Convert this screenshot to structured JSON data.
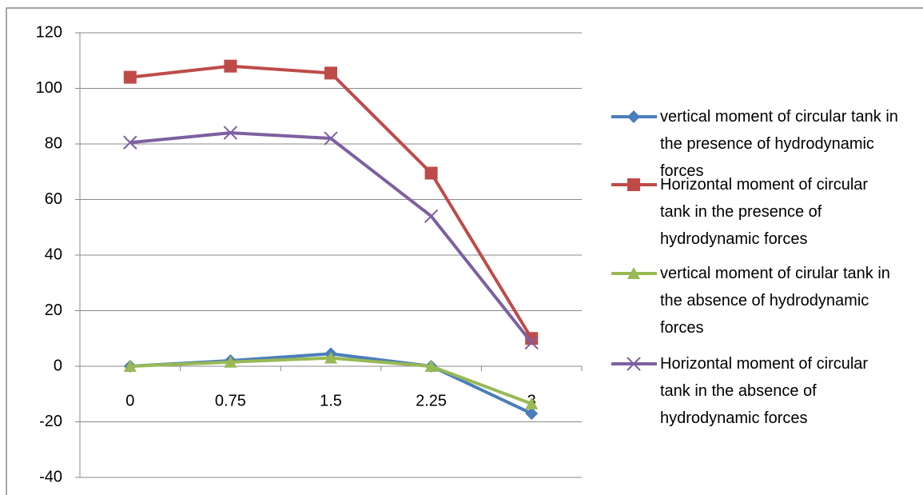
{
  "chart_data": {
    "type": "line",
    "categories": [
      "0",
      "0.75",
      "1.5",
      "2.25",
      "3"
    ],
    "series": [
      {
        "name": "vertical moment of circular tank in the presence of hydrodynamic forces",
        "color": "#4a7ebb",
        "marker": "diamond",
        "values": [
          0,
          2,
          4.5,
          0,
          -17
        ]
      },
      {
        "name": "Horizontal moment of circular tank in the presence of hydrodynamic forces",
        "color": "#be4b48",
        "marker": "square",
        "values": [
          104,
          108,
          105.5,
          69.5,
          10
        ]
      },
      {
        "name": "vertical moment of cirular tank in the absence of hydrodynamic forces",
        "color": "#98b954",
        "marker": "triangle",
        "values": [
          0,
          1.5,
          3,
          0,
          -13.5
        ]
      },
      {
        "name": "Horizontal moment of circular tank in the absence of hydrodynamic forces",
        "color": "#7d60a0",
        "marker": "x",
        "values": [
          80.5,
          84,
          82,
          54,
          8.5
        ]
      }
    ],
    "ylim": [
      -40,
      120
    ],
    "yticks": [
      -40,
      -20,
      0,
      20,
      40,
      60,
      80,
      100,
      120
    ],
    "grid": true,
    "legend": "right"
  }
}
